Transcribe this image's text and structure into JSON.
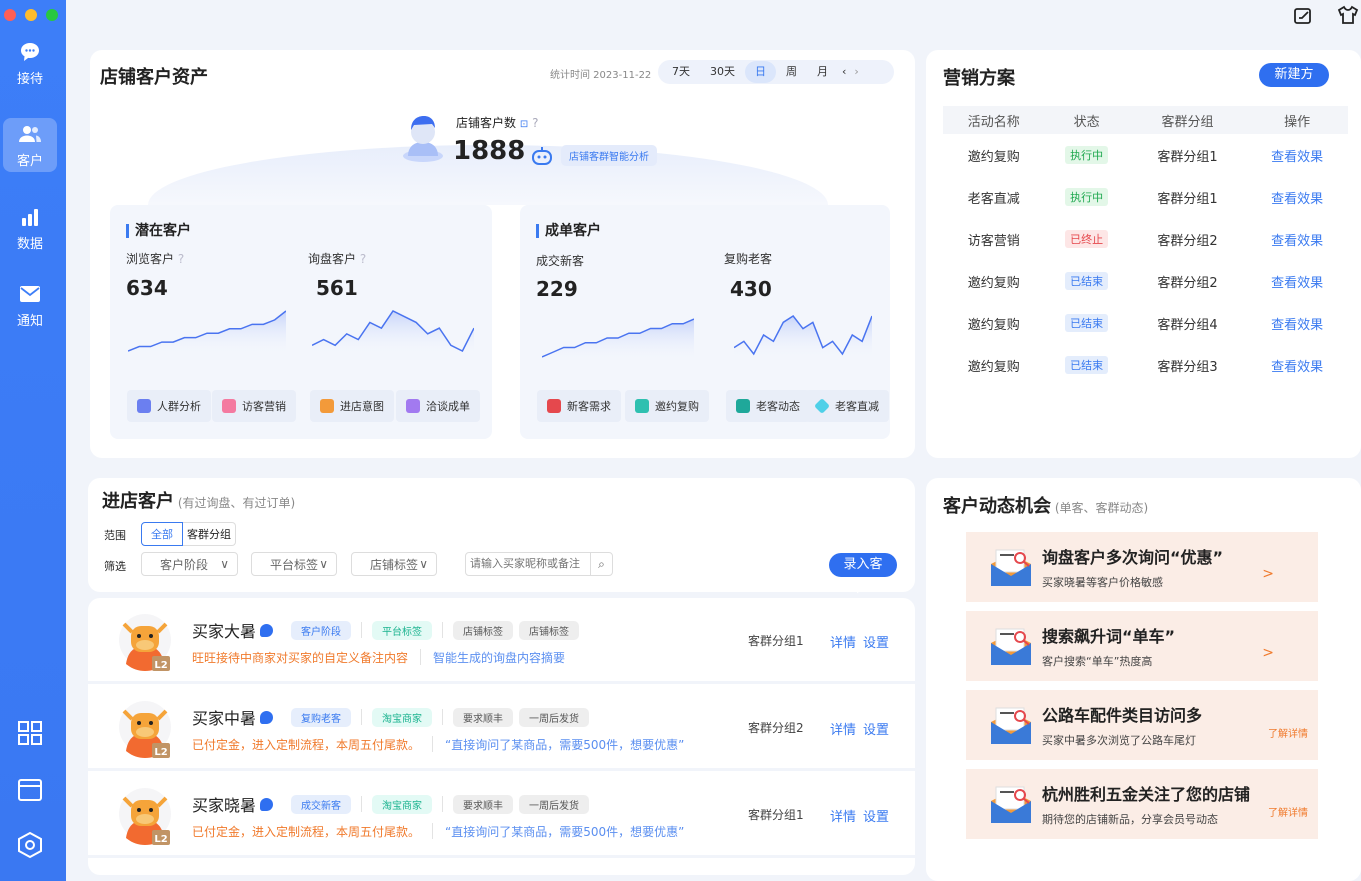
{
  "sidebar": {
    "items": [
      {
        "label": "接待",
        "icon": "chat-icon"
      },
      {
        "label": "客户",
        "icon": "users-icon",
        "active": true
      },
      {
        "label": "数据",
        "icon": "bar-chart-icon"
      },
      {
        "label": "通知",
        "icon": "mail-icon"
      }
    ],
    "bottom_icons": [
      "grid-icon",
      "window-icon",
      "settings-hex-icon"
    ]
  },
  "topbar": {
    "icons": [
      "edit-icon",
      "shirt-icon"
    ]
  },
  "assets": {
    "title": "店铺客户资产",
    "stat_time": "统计时间 2023-11-22",
    "periods": [
      "7天",
      "30天",
      "日",
      "周",
      "月"
    ],
    "active_period": "日",
    "total_label": "店铺客户数",
    "total_value": "1888",
    "ai_label": "店铺客群智能分析",
    "potential": {
      "title": "潜在客户",
      "metrics": [
        {
          "label": "浏览客户",
          "value": "634",
          "trend": [
            2,
            3,
            3,
            4,
            4,
            5,
            5,
            6,
            6,
            7,
            7,
            8,
            8,
            9,
            11
          ]
        },
        {
          "label": "询盘客户",
          "value": "561",
          "trend": [
            3,
            4,
            3,
            5,
            4,
            7,
            6,
            9,
            8,
            7,
            5,
            6,
            3,
            2,
            6
          ]
        }
      ],
      "actions": [
        "人群分析",
        "访客营销",
        "进店意图",
        "洽谈成单"
      ]
    },
    "deal": {
      "title": "成单客户",
      "metrics": [
        {
          "label": "成交新客",
          "value": "229",
          "trend": [
            1,
            2,
            3,
            3,
            4,
            4,
            5,
            5,
            6,
            6,
            7,
            7,
            8,
            8,
            9
          ]
        },
        {
          "label": "复购老客",
          "value": "430",
          "trend": [
            4,
            5,
            3,
            6,
            5,
            8,
            9,
            7,
            8,
            4,
            5,
            3,
            6,
            5,
            9
          ]
        }
      ],
      "actions": [
        "新客需求",
        "邀约复购",
        "老客动态",
        "老客直减"
      ]
    }
  },
  "marketing": {
    "title": "营销方案",
    "new_button": "新建方案",
    "columns": [
      "活动名称",
      "状态",
      "客群分组",
      "操作"
    ],
    "rows": [
      {
        "name": "邀约复购",
        "status": "执行中",
        "group": "客群分组1",
        "action": "查看效果"
      },
      {
        "name": "老客直减",
        "status": "执行中",
        "group": "客群分组1",
        "action": "查看效果"
      },
      {
        "name": "访客营销",
        "status": "已终止",
        "group": "客群分组2",
        "action": "查看效果"
      },
      {
        "name": "邀约复购",
        "status": "已结束",
        "group": "客群分组2",
        "action": "查看效果"
      },
      {
        "name": "邀约复购",
        "status": "已结束",
        "group": "客群分组4",
        "action": "查看效果"
      },
      {
        "name": "邀约复购",
        "status": "已结束",
        "group": "客群分组3",
        "action": "查看效果"
      }
    ],
    "status_colors": {
      "执行中": "#1fa84f",
      "已终止": "#e5484d",
      "已结束": "#3a7af0"
    }
  },
  "instore": {
    "title": "进店客户",
    "subtitle": "(有过询盘、有过订单)",
    "scope_label": "范围",
    "scope_options": [
      "全部",
      "客群分组"
    ],
    "filter_label": "筛选",
    "filters": [
      "客户阶段",
      "平台标签",
      "店铺标签"
    ],
    "search_placeholder": "请输入买家昵称或备注",
    "add_button": "录入客户"
  },
  "customers": [
    {
      "name": "买家大暑",
      "level": "L2",
      "tags": [
        "客户阶段",
        "平台标签",
        "店铺标签",
        "店铺标签"
      ],
      "note": "旺旺接待中商家对买家的自定义备注内容",
      "summary": "智能生成的询盘内容摘要",
      "group": "客群分组1",
      "detail": "详情",
      "settings": "设置"
    },
    {
      "name": "买家中暑",
      "level": "L2",
      "tags": [
        "复购老客",
        "淘宝商家",
        "要求顺丰",
        "一周后发货"
      ],
      "note": "已付定金，进入定制流程，本周五付尾款。",
      "summary": "“直接询问了某商品，需要500件，想要优惠”",
      "group": "客群分组2",
      "detail": "详情",
      "settings": "设置"
    },
    {
      "name": "买家晓暑",
      "level": "L2",
      "tags": [
        "成交新客",
        "淘宝商家",
        "要求顺丰",
        "一周后发货"
      ],
      "note": "已付定金，进入定制流程，本周五付尾款。",
      "summary": "“直接询问了某商品，需要500件，想要优惠”",
      "group": "客群分组1",
      "detail": "详情",
      "settings": "设置"
    }
  ],
  "opportunities": {
    "title": "客户动态机会",
    "subtitle": "(单客、客群动态)",
    "items": [
      {
        "title": "询盘客户多次询问“优惠”",
        "desc": "买家晓暑等客户价格敏感",
        "action": ">"
      },
      {
        "title": "搜索飙升词“单车”",
        "desc": "客户搜索“单车”热度高",
        "action": ">"
      },
      {
        "title": "公路车配件类目访问多",
        "desc": "买家中暑多次浏览了公路车尾灯",
        "action": "了解详情"
      },
      {
        "title": "杭州胜利五金关注了您的店铺",
        "desc": "期待您的店铺新品，分享会员号动态",
        "action": "了解详情"
      }
    ]
  },
  "colors": {
    "accent": "#3a7af0",
    "sidebar": "#3d7ef8",
    "note": "#f07a2c"
  }
}
